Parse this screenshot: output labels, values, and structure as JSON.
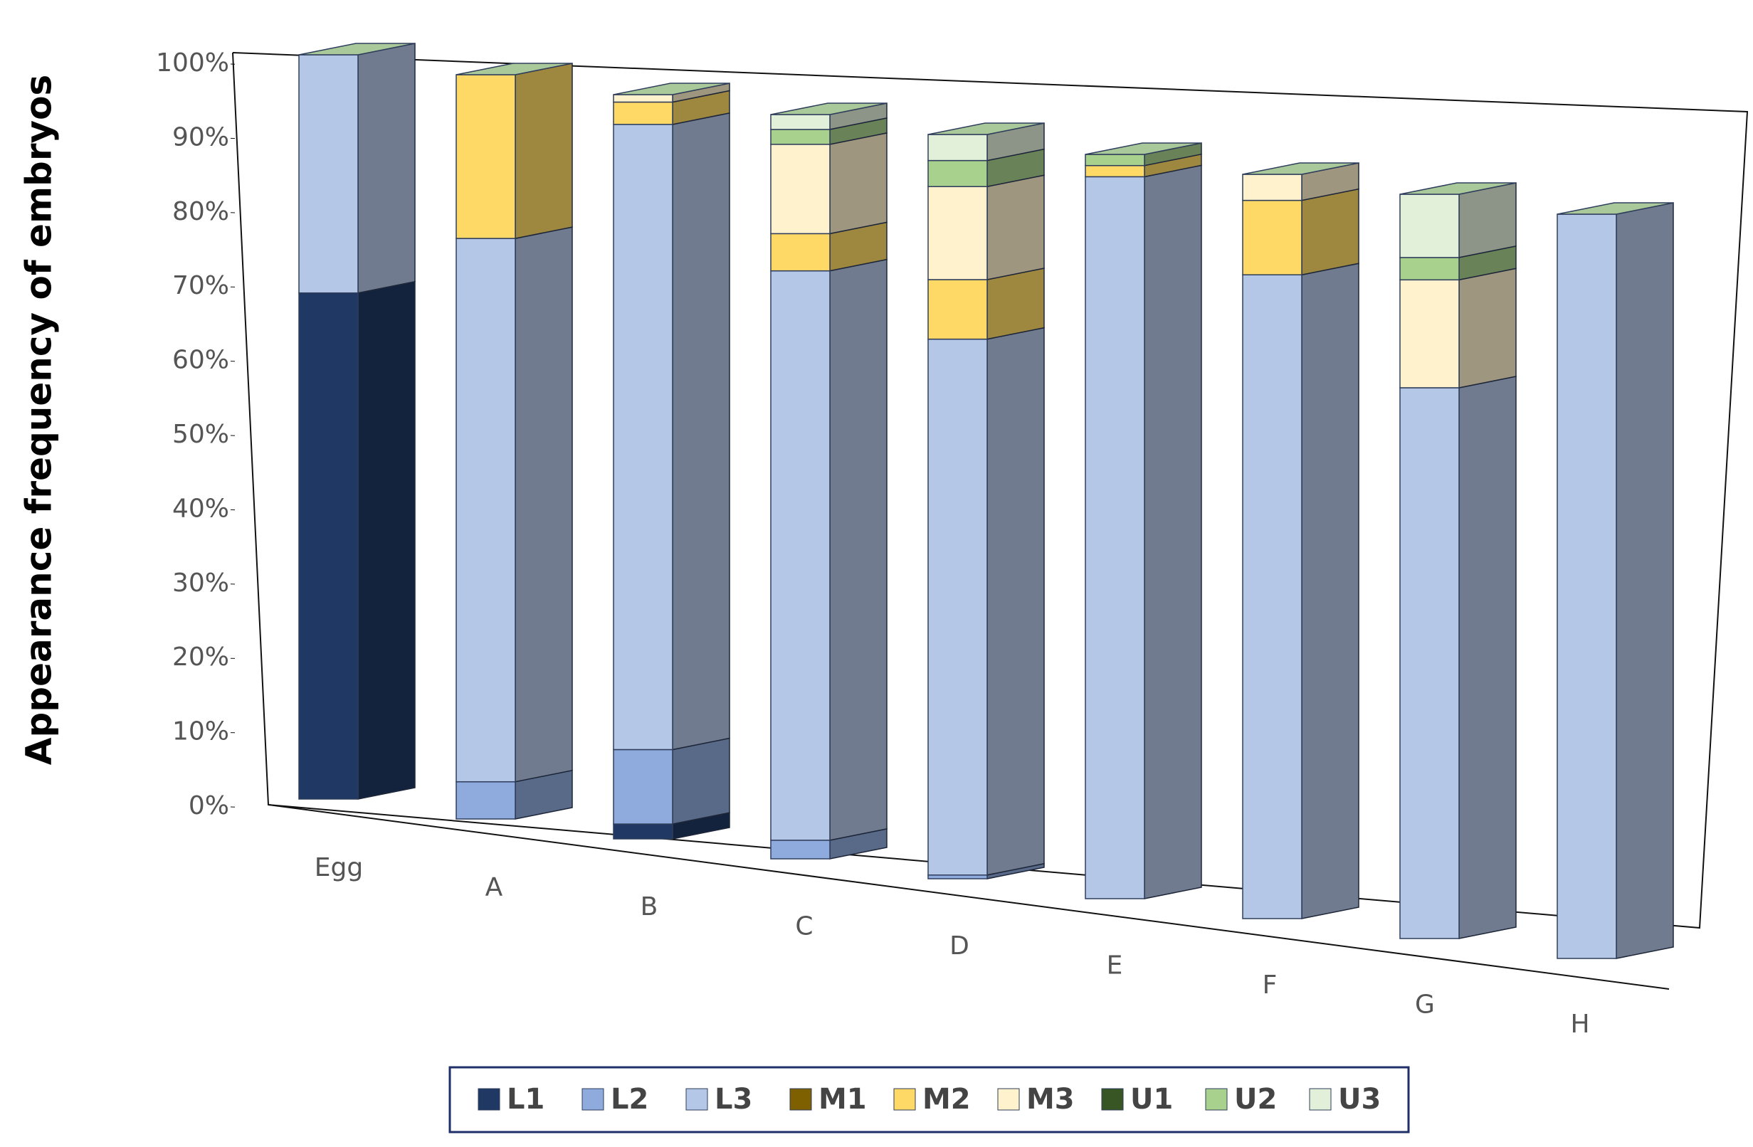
{
  "chart_data": {
    "type": "bar3d_stacked",
    "y_label": "Appearance frequency of embryos",
    "categories": [
      "Egg",
      "A",
      "B",
      "C",
      "D",
      "E",
      "F",
      "G",
      "H"
    ],
    "series": [
      {
        "name": "L1",
        "color": "#1f3864",
        "values": [
          68,
          0,
          2,
          0,
          0,
          0,
          0,
          0,
          0
        ]
      },
      {
        "name": "L2",
        "color": "#8faadc",
        "values": [
          0,
          5,
          10,
          2.5,
          0.5,
          0,
          0,
          0,
          0
        ]
      },
      {
        "name": "L3",
        "color": "#b4c7e7",
        "values": [
          32,
          73,
          84,
          76.5,
          72,
          97,
          86.5,
          74,
          100
        ]
      },
      {
        "name": "M1",
        "color": "#7f6000",
        "values": [
          0,
          0,
          0,
          0,
          0,
          0,
          0,
          0,
          0
        ]
      },
      {
        "name": "M2",
        "color": "#ffd966",
        "values": [
          0,
          22,
          3,
          5,
          8,
          1.5,
          10,
          0,
          0
        ]
      },
      {
        "name": "M3",
        "color": "#fff2cc",
        "values": [
          0,
          0,
          1,
          12,
          12.5,
          0,
          3.5,
          14.5,
          0
        ]
      },
      {
        "name": "U1",
        "color": "#375623",
        "values": [
          0,
          0,
          0,
          0,
          0,
          0,
          0,
          0,
          0
        ]
      },
      {
        "name": "U2",
        "color": "#a9d18e",
        "values": [
          0,
          0,
          0,
          2,
          3.5,
          1.5,
          0,
          3,
          0
        ]
      },
      {
        "name": "U3",
        "color": "#e2f0d9",
        "values": [
          0,
          0,
          0,
          2,
          3.5,
          0,
          0,
          8.5,
          0
        ]
      }
    ],
    "ylim": [
      0,
      100
    ],
    "yticks": [
      {
        "value": 0,
        "label": "0%"
      },
      {
        "value": 10,
        "label": "10%"
      },
      {
        "value": 20,
        "label": "20%"
      },
      {
        "value": 30,
        "label": "30%"
      },
      {
        "value": 40,
        "label": "40%"
      },
      {
        "value": 50,
        "label": "50%"
      },
      {
        "value": 60,
        "label": "60%"
      },
      {
        "value": 70,
        "label": "70%"
      },
      {
        "value": 80,
        "label": "80%"
      },
      {
        "value": 90,
        "label": "90%"
      },
      {
        "value": 100,
        "label": "100%"
      }
    ],
    "legend": "bottom"
  }
}
